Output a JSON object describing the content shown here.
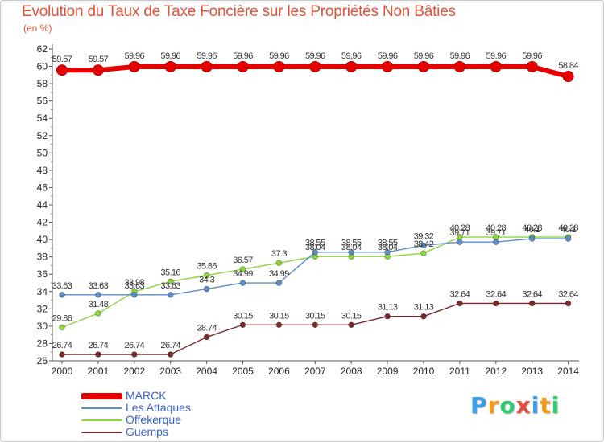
{
  "header": {
    "title": "Evolution du Taux de Taxe Foncière sur les Propriétés Non Bâties",
    "unit": "(en %)"
  },
  "logo": {
    "text": "Proxiti",
    "colors": [
      "#3a9ee6",
      "#f39c12",
      "#2ecc71",
      "#e74c3c",
      "#3a9ee6",
      "#f39c12",
      "#2ecc71"
    ]
  },
  "chart_data": {
    "type": "line",
    "title": "Evolution du Taux de Taxe Foncière sur les Propriétés Non Bâties",
    "ylabel": "(en %)",
    "xlabel": "",
    "x": [
      "2000",
      "2001",
      "2002",
      "2003",
      "2004",
      "2005",
      "2006",
      "2007",
      "2008",
      "2009",
      "2010",
      "2011",
      "2012",
      "2013",
      "2014"
    ],
    "ylim": [
      26,
      62
    ],
    "ytick_step": 2,
    "grid": false,
    "legend_position": "bottom-left",
    "series": [
      {
        "name": "MARCK",
        "color": "#e60000",
        "values": [
          59.57,
          59.57,
          59.96,
          59.96,
          59.96,
          59.96,
          59.96,
          59.96,
          59.96,
          59.96,
          59.96,
          59.96,
          59.96,
          59.96,
          58.84
        ],
        "labels": [
          "59.57",
          "59.57",
          "59.96",
          "59.96",
          "59.96",
          "59.96",
          "59.96",
          "59.96",
          "59.96",
          "59.96",
          "59.96",
          "59.96",
          "59.96",
          "59.96",
          "58.84"
        ]
      },
      {
        "name": "Les Attaques",
        "color": "#5b8ec9",
        "values": [
          33.63,
          33.63,
          33.63,
          33.63,
          34.3,
          34.99,
          34.99,
          38.55,
          38.55,
          38.55,
          39.32,
          39.71,
          39.71,
          40.1,
          40.1
        ],
        "labels": [
          "33.63",
          "33.63",
          "33.63",
          "33.63",
          "34.3",
          "34.99",
          "34.99",
          "38.55",
          "38.55",
          "38.55",
          "39.32",
          "39.71",
          "39.71",
          "40.1",
          "40.1"
        ]
      },
      {
        "name": "Offekerque",
        "color": "#8bd63f",
        "values": [
          29.86,
          31.48,
          33.98,
          35.16,
          35.86,
          36.57,
          37.3,
          38.04,
          38.04,
          38.04,
          38.42,
          40.28,
          40.28,
          40.28,
          40.28
        ],
        "labels": [
          "29.86",
          "31.48",
          "33.98",
          "35.16",
          "35.86",
          "36.57",
          "37.3",
          "38.04",
          "38.04",
          "38.04",
          "38.42",
          "40.28",
          "40.28",
          "40.28",
          "40.28"
        ]
      },
      {
        "name": "Guemps",
        "color": "#7a2a2a",
        "values": [
          26.74,
          26.74,
          26.74,
          26.74,
          28.74,
          30.15,
          30.15,
          30.15,
          30.15,
          31.13,
          31.13,
          32.64,
          32.64,
          32.64,
          32.64
        ],
        "labels": [
          "26.74",
          "26.74",
          "26.74",
          "26.74",
          "28.74",
          "30.15",
          "30.15",
          "30.15",
          "30.15",
          "31.13",
          "31.13",
          "32.64",
          "32.64",
          "32.64",
          "32.64"
        ]
      }
    ]
  }
}
